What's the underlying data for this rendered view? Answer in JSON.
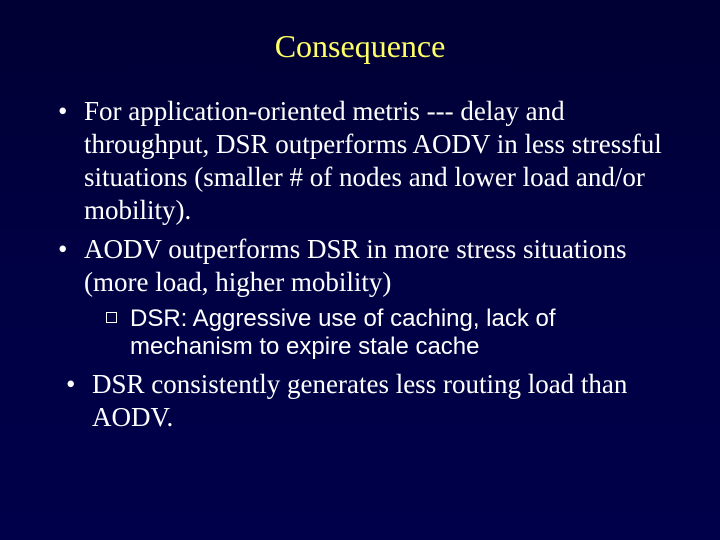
{
  "title_color": "#ffff66",
  "body_text_color": "#ffffff",
  "background_gradient_top": "#000033",
  "background_gradient_bottom": "#00004a",
  "title_fontsize": 32,
  "bullet_fontsize": 27,
  "sub_bullet_fontsize": 24,
  "title_font": "Times New Roman",
  "body_font": "Times New Roman",
  "sub_font": "Arial",
  "title": "Consequence",
  "bullets": [
    {
      "text": "For application-oriented metris --- delay and throughput, DSR outperforms AODV in less stressful situations (smaller # of nodes and lower load and/or mobility).",
      "sub": []
    },
    {
      "text": "AODV outperforms DSR in more stress situations (more load, higher mobility)",
      "sub": [
        {
          "text": "DSR: Aggressive use of caching, lack of mechanism to expire stale cache"
        }
      ]
    },
    {
      "text": " DSR consistently generates less routing load than AODV.",
      "sub": [],
      "extra_indent": true
    }
  ]
}
